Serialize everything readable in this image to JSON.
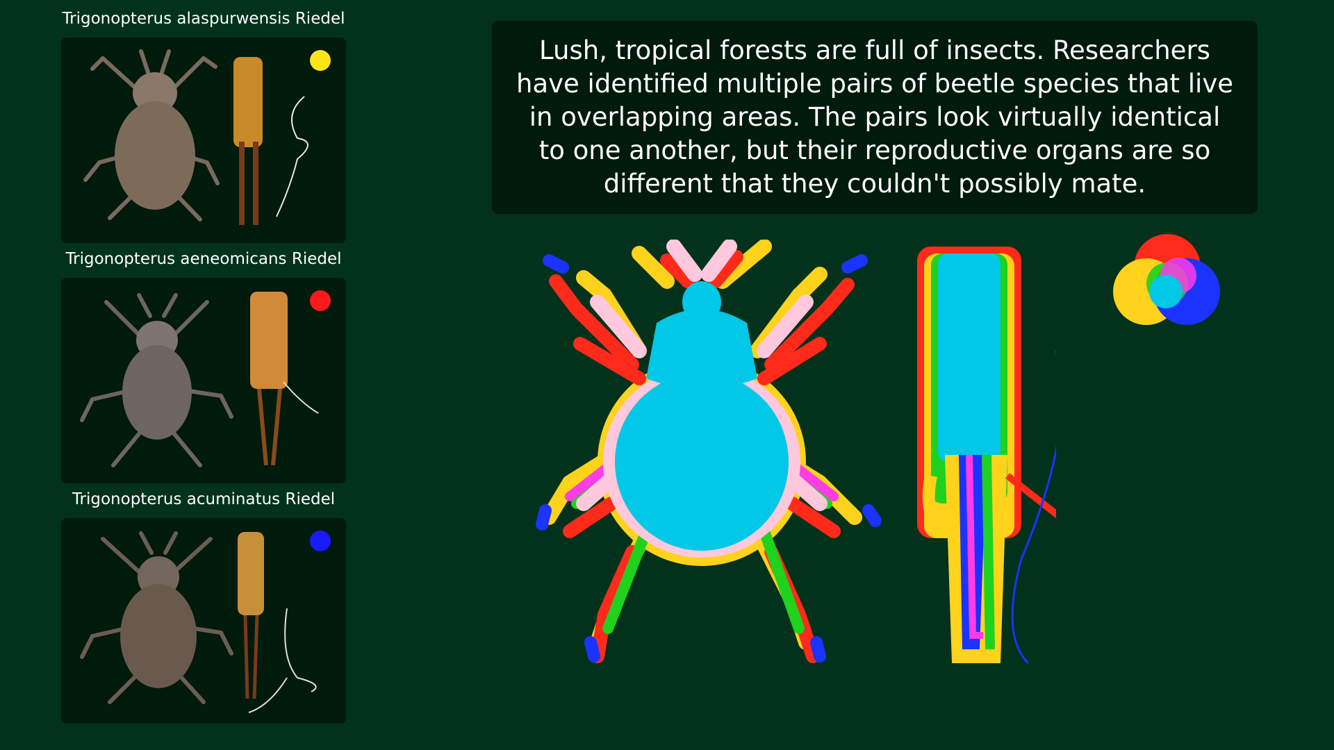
{
  "species": [
    {
      "name": "Trigonopterus alaspurwensis Riedel",
      "color": "#ffe41a",
      "color_name": "yellow"
    },
    {
      "name": "Trigonopterus aeneomicans Riedel",
      "color": "#ff1a1a",
      "color_name": "red"
    },
    {
      "name": "Trigonopterus acuminatus Riedel",
      "color": "#1a1aff",
      "color_name": "blue"
    }
  ],
  "caption": "Lush, tropical forests are full of insects. Researchers have identified multiple pairs of beetle species that live in overlapping areas. The pairs look virtually identical to one another, but their reproductive organs are so different that they couldn't possibly mate.",
  "overlay": {
    "icons": [
      "beetle-silhouette-overlay",
      "reproductive-organ-overlay",
      "color-venn-legend"
    ],
    "colors": {
      "yellow": "#ffd21c",
      "red": "#ff2a1a",
      "blue": "#1a33ff",
      "green": "#1ed21e",
      "magenta": "#ff3ce6",
      "pink": "#ffc8dc",
      "cyan": "#00c8e6"
    }
  }
}
